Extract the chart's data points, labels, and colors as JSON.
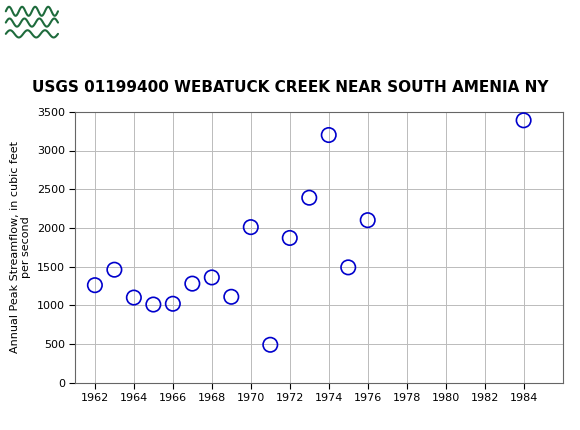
{
  "title": "USGS 01199400 WEBATUCK CREEK NEAR SOUTH AMENIA NY",
  "ylabel": "Annual Peak Streamflow, in cubic feet\nper second",
  "xlabel": "",
  "years": [
    1962,
    1963,
    1964,
    1965,
    1966,
    1967,
    1968,
    1969,
    1970,
    1971,
    1972,
    1973,
    1974,
    1975,
    1976,
    1984
  ],
  "flows": [
    1260,
    1460,
    1100,
    1010,
    1020,
    1280,
    1360,
    1110,
    2010,
    490,
    1870,
    2390,
    3200,
    1490,
    2100,
    3390
  ],
  "xlim": [
    1961,
    1986
  ],
  "ylim": [
    0,
    3500
  ],
  "xticks": [
    1962,
    1964,
    1966,
    1968,
    1970,
    1972,
    1974,
    1976,
    1978,
    1980,
    1982,
    1984
  ],
  "yticks": [
    0,
    500,
    1000,
    1500,
    2000,
    2500,
    3000,
    3500
  ],
  "marker_color": "#0000cc",
  "marker_facecolor": "none",
  "marker_size": 6,
  "marker_linewidth": 1.2,
  "marker_style": "o",
  "grid_color": "#bbbbbb",
  "bg_color": "#ffffff",
  "header_bg": "#1e6b3c",
  "title_fontsize": 11,
  "axis_label_fontsize": 8,
  "tick_fontsize": 8
}
